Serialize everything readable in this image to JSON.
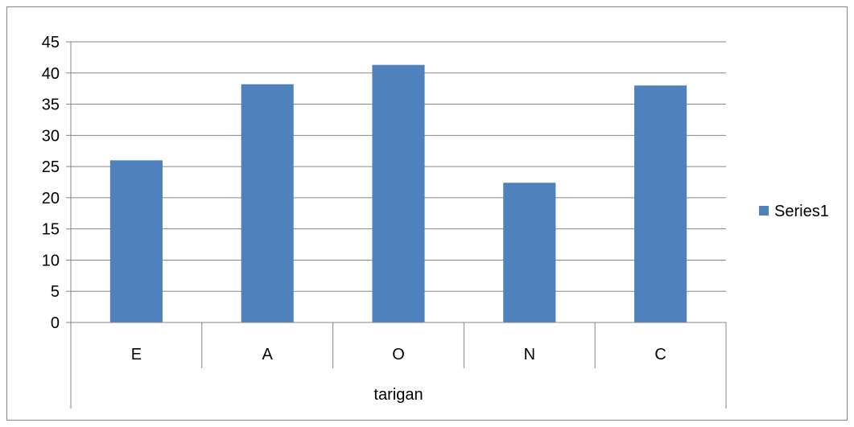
{
  "chart_data": {
    "type": "bar",
    "categories": [
      "E",
      "A",
      "O",
      "N",
      "C"
    ],
    "group_label": "tarigan",
    "series": [
      {
        "name": "Series1",
        "values": [
          26,
          38.2,
          41.3,
          22.4,
          38
        ],
        "color": "#4F81BD"
      }
    ],
    "ylim": [
      0,
      45
    ],
    "yticks": [
      0,
      5,
      10,
      15,
      20,
      25,
      30,
      35,
      40,
      45
    ],
    "grid": true,
    "legend_position": "right"
  }
}
